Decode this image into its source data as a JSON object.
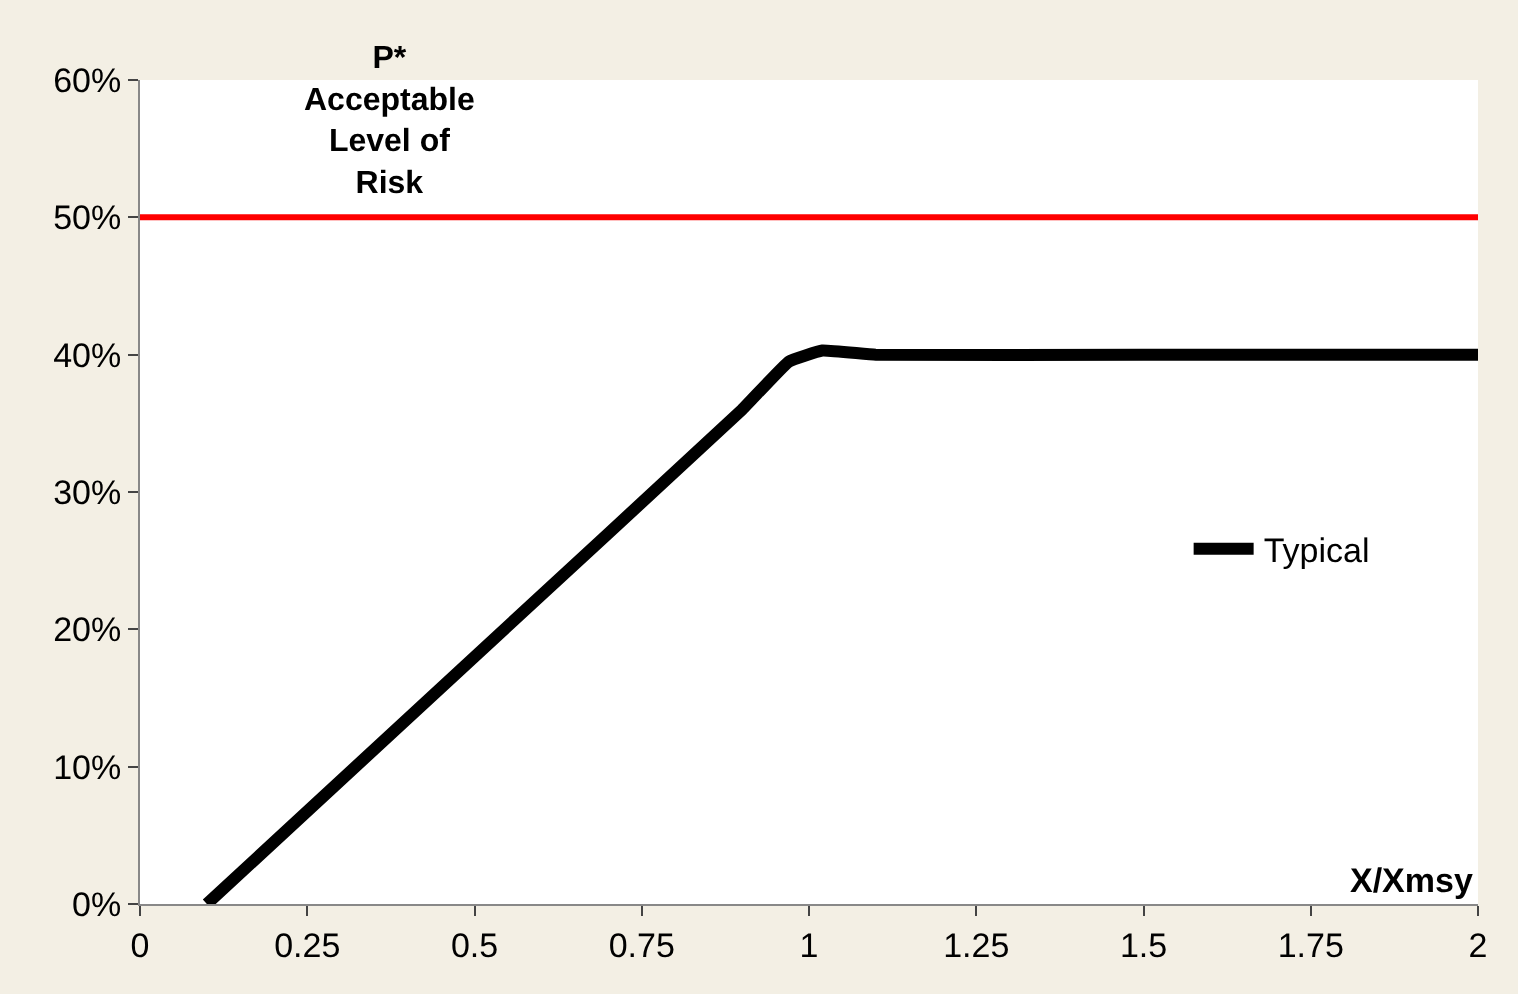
{
  "chart_data": {
    "type": "line",
    "xlabel": "X/Xmsy",
    "x": [
      0.1,
      0.5,
      0.9,
      0.97,
      1.02,
      1.1,
      1.5,
      2
    ],
    "series": [
      {
        "name": "Typical",
        "color": "#000000",
        "values": [
          0,
          18,
          36,
          39.5,
          40.3,
          40,
          40,
          40
        ]
      }
    ],
    "xlim": [
      0,
      2
    ],
    "xticks": [
      0,
      0.25,
      0.5,
      0.75,
      1,
      1.25,
      1.5,
      1.75,
      2
    ],
    "ylim": [
      0,
      60
    ],
    "yticks": [
      {
        "value": 0,
        "label": "0%"
      },
      {
        "value": 10,
        "label": "10%"
      },
      {
        "value": 20,
        "label": "20%"
      },
      {
        "value": 30,
        "label": "30%"
      },
      {
        "value": 40,
        "label": "40%"
      },
      {
        "value": 50,
        "label": "50%"
      },
      {
        "value": 60,
        "label": "60%"
      }
    ],
    "ref_lines": [
      {
        "axis": "y",
        "value": 50,
        "label": "P*\nAcceptable\nLevel of\nRisk",
        "color": "#ff0000"
      }
    ],
    "grid": false,
    "legend": "right",
    "marker": "none",
    "line_style": "solid"
  }
}
